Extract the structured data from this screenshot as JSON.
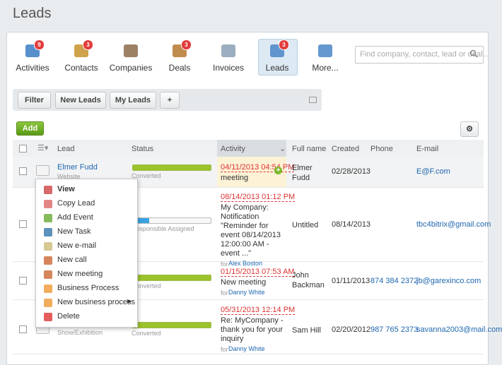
{
  "header": {
    "title": "Leads"
  },
  "nav": [
    {
      "label": "Activities",
      "badge": 9
    },
    {
      "label": "Contacts",
      "badge": 3
    },
    {
      "label": "Companies"
    },
    {
      "label": "Deals",
      "badge": 3
    },
    {
      "label": "Invoices"
    },
    {
      "label": "Leads",
      "badge": 3
    },
    {
      "label": "More..."
    }
  ],
  "search": {
    "placeholder": "Find company, contact, lead or deal..."
  },
  "filter_bar": {
    "buttons": [
      "Filter",
      "New Leads",
      "My Leads",
      "+"
    ]
  },
  "toolbar": {
    "add": "Add"
  },
  "table": {
    "columns": [
      "Lead",
      "Status",
      "Activity",
      "Full name",
      "Created",
      "Phone",
      "E-mail"
    ],
    "rows": [
      {
        "lead": "Elmer Fudd",
        "source": "Website",
        "status": "Converted",
        "activity_date": "04/11/2013 04:54 PM",
        "activity": "meeting",
        "full_name": "Elmer Fudd",
        "created": "02/28/2013",
        "email": "E@F.com"
      },
      {
        "status": "Responsible Assigned",
        "activity_date": "08/14/2013 01:12 PM",
        "activity": "My Company: Notification \"Reminder for event 08/14/2013 12:00:00 AM - event ...\"",
        "activity_prefix": "for",
        "activity_owner": "Alex Boston",
        "full_name": "Untitled",
        "created": "08/14/2013",
        "email": "tbc4bitrix@gmail.com"
      },
      {
        "status": "Converted",
        "activity_date": "01/15/2013 07:53 AM",
        "activity": "New meeting",
        "activity_prefix": "for",
        "activity_owner": "Danny White",
        "full_name": "John Backman",
        "created": "01/11/2013",
        "phone": "874 384 2372",
        "email": "jb@garexinco.com"
      },
      {
        "source": "Show/Exhibition",
        "status": "Converted",
        "activity_date": "05/31/2013 12:14 PM",
        "activity": "Re: MyCompany - thank you for your inquiry",
        "activity_prefix": "for",
        "activity_owner": "Danny White",
        "full_name": "Sam Hill",
        "created": "02/20/2012",
        "phone": "987 765 2373",
        "email": "savanna2003@mail.com"
      }
    ]
  },
  "context_menu": {
    "items": [
      "View",
      "Copy Lead",
      "Add Event",
      "New Task",
      "New e-mail",
      "New call",
      "New meeting",
      "Business Process",
      "New business process",
      "Delete"
    ]
  }
}
